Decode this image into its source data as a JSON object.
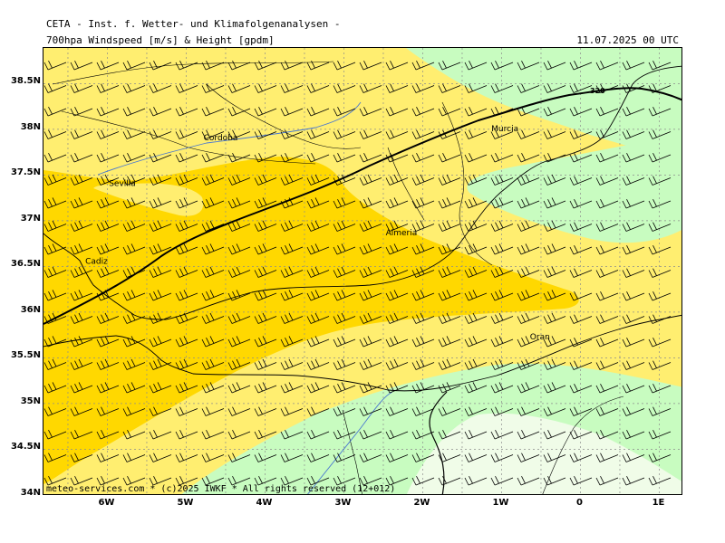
{
  "header": {
    "title": "CETA - Inst. f. Wetter- und Klimafolgenanalysen -",
    "subtitle": "700hpa Windspeed [m/s] & Height [gpdm]",
    "datetime": "11.07.2025 00 UTC"
  },
  "footer": {
    "copyright": "meteo-services.com * (c)2025 IWKF * All rights reserved (12+012)"
  },
  "axes": {
    "lat_ticks": [
      "38.5N",
      "38N",
      "37.5N",
      "37N",
      "36.5N",
      "36N",
      "35.5N",
      "35N",
      "34.5N",
      "34N"
    ],
    "lon_ticks": [
      "6W",
      "5W",
      "4W",
      "3W",
      "2W",
      "1W",
      "0",
      "1E"
    ]
  },
  "cities": [
    {
      "name": "Cordoba",
      "lon": -4.78,
      "lat": 37.88
    },
    {
      "name": "Sevilla",
      "lon": -5.98,
      "lat": 37.38
    },
    {
      "name": "Cadiz",
      "lon": -6.28,
      "lat": 36.53
    },
    {
      "name": "Almeria",
      "lon": -2.47,
      "lat": 36.84
    },
    {
      "name": "Murcia",
      "lon": -1.13,
      "lat": 37.98
    },
    {
      "name": "Oran",
      "lon": -0.64,
      "lat": 35.7
    }
  ],
  "contour": {
    "label": "320",
    "value": 320,
    "unit": "gpdm"
  },
  "colors": {
    "speed_very_low": "#f0fce8",
    "speed_low": "#c8fcc0",
    "speed_mid": "#ffee70",
    "speed_high": "#ffd800",
    "contour": "#000000",
    "coast": "#000000",
    "rivers": "#4a78d0",
    "grid": "#8c8c8c"
  }
}
